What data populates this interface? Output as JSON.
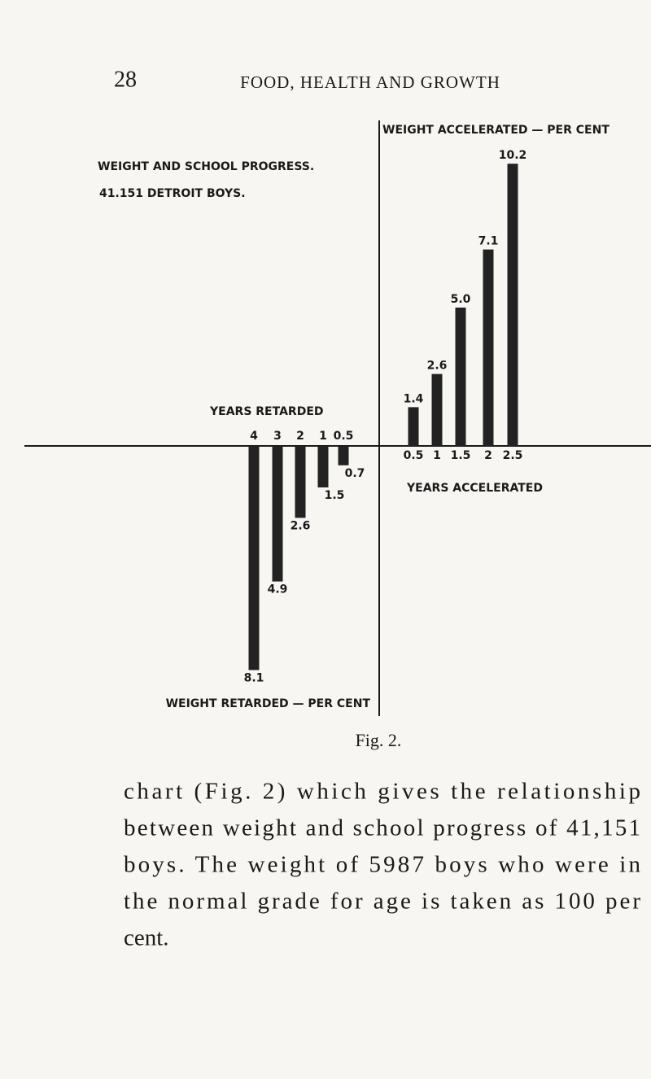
{
  "header": {
    "page_number": "28",
    "running_title": "FOOD, HEALTH AND GROWTH"
  },
  "chart_data": [
    {
      "type": "bar",
      "direction": "down",
      "color": "#222222",
      "title": "WEIGHT AND SCHOOL PROGRESS.",
      "subtitle": "41.151 DETROIT BOYS.",
      "x_label": "YEARS RETARDED",
      "y_label": "WEIGHT RETARDED — PER CENT",
      "categories": [
        "4",
        "3",
        "2",
        "1",
        "0.5"
      ],
      "values": [
        8.1,
        4.9,
        2.6,
        1.5,
        0.7
      ]
    },
    {
      "type": "bar",
      "direction": "up",
      "color": "#222222",
      "x_label": "YEARS ACCELERATED",
      "y_label": "WEIGHT ACCELERATED — PER CENT",
      "categories": [
        "0.5",
        "1",
        "1.5",
        "2",
        "2.5"
      ],
      "values": [
        1.4,
        2.6,
        5.0,
        7.1,
        10.2
      ],
      "value_labels": [
        "1.4",
        "2.6",
        "5.0",
        "7.1",
        "10.2"
      ]
    }
  ],
  "caption": "Fig. 2.",
  "paragraph": {
    "lines": [
      "chart (Fig. 2) which gives the relationship",
      "between weight and school progress of 41,151",
      "boys. The weight of 5987 boys who were in",
      "the normal grade for age is taken as 100 per",
      "cent."
    ]
  }
}
